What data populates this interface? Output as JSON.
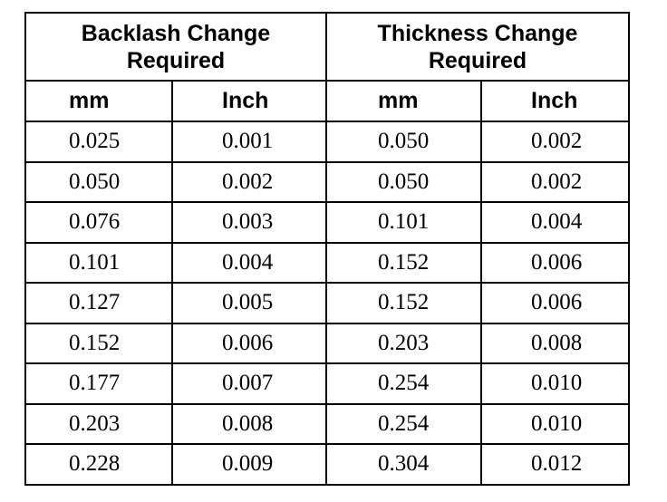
{
  "table": {
    "groups": [
      "Backlash Change Required",
      "Thickness Change Required"
    ],
    "columns": [
      "mm",
      "Inch",
      "mm",
      "Inch"
    ],
    "rows": [
      [
        "0.025",
        "0.001",
        "0.050",
        "0.002"
      ],
      [
        "0.050",
        "0.002",
        "0.050",
        "0.002"
      ],
      [
        "0.076",
        "0.003",
        "0.101",
        "0.004"
      ],
      [
        "0.101",
        "0.004",
        "0.152",
        "0.006"
      ],
      [
        "0.127",
        "0.005",
        "0.152",
        "0.006"
      ],
      [
        "0.152",
        "0.006",
        "0.203",
        "0.008"
      ],
      [
        "0.177",
        "0.007",
        "0.254",
        "0.010"
      ],
      [
        "0.203",
        "0.008",
        "0.254",
        "0.010"
      ],
      [
        "0.228",
        "0.009",
        "0.304",
        "0.012"
      ]
    ]
  }
}
